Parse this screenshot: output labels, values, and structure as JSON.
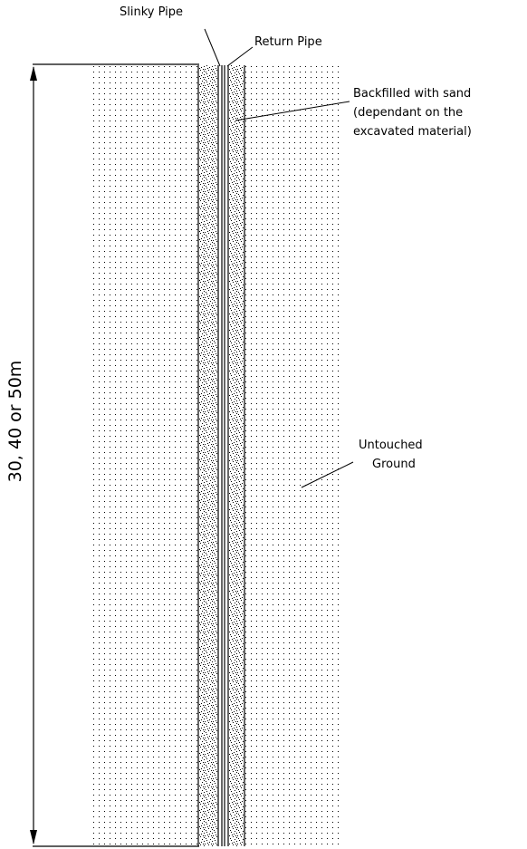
{
  "labels": {
    "slinky_pipe": "Slinky Pipe",
    "return_pipe": "Return Pipe",
    "backfill_line1": "Backfilled with sand",
    "backfill_line2": "(dependant on the",
    "backfill_line3": "excavated material)",
    "untouched_line1": "Untouched",
    "untouched_line2": "Ground"
  },
  "dimension": {
    "depth_label": "30, 40 or 50m"
  },
  "colors": {
    "line": "#000000",
    "ground_dots": "#000000",
    "sand_speckle": "#000000",
    "background": "#ffffff"
  }
}
